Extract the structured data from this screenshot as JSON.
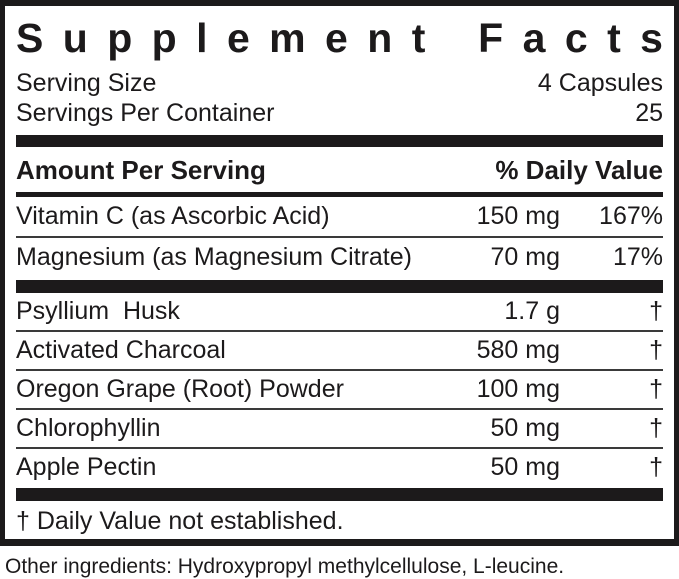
{
  "label": {
    "title": "Supplement Facts",
    "serving": [
      {
        "name": "Serving Size",
        "value": "4 Capsules"
      },
      {
        "name": "Servings Per Container",
        "value": "25"
      }
    ],
    "header": {
      "left": "Amount Per Serving",
      "right": "% Daily Value"
    },
    "nutrients": [
      {
        "name": "Vitamin C (as Ascorbic Acid)",
        "amount": "150 mg",
        "dv": "167%"
      },
      {
        "name": "Magnesium (as Magnesium Citrate)",
        "amount": "70 mg",
        "dv": "17%"
      }
    ],
    "blend": [
      {
        "name": "Psyllium  Husk",
        "amount": "1.7 g",
        "dv": "†"
      },
      {
        "name": "Activated Charcoal",
        "amount": "580 mg",
        "dv": "†"
      },
      {
        "name": "Oregon Grape (Root) Powder",
        "amount": "100 mg",
        "dv": "†"
      },
      {
        "name": "Chlorophyllin",
        "amount": "50 mg",
        "dv": "†"
      },
      {
        "name": "Apple Pectin",
        "amount": "50 mg",
        "dv": "†"
      }
    ],
    "footnote": "† Daily Value not established.",
    "other_ingredients": "Other ingredients: Hydroxypropyl methylcellulose, L-leucine.",
    "colors": {
      "ink": "#1c1a1b",
      "background": "#ffffff"
    }
  }
}
